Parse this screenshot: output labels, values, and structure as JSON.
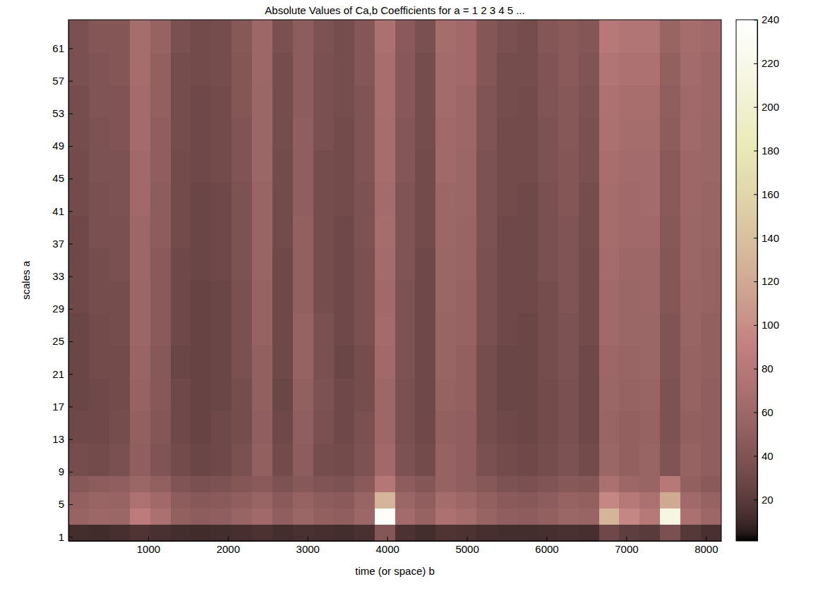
{
  "chart_data": {
    "type": "heatmap",
    "title": "Absolute Values of Ca,b Coefficients for a =  1 2 3 4 5 ...",
    "xlabel": "time (or space) b",
    "ylabel": "scales a",
    "xlim": [
      0,
      8192
    ],
    "xticks": [
      1000,
      2000,
      3000,
      4000,
      5000,
      6000,
      7000,
      8000
    ],
    "ylim": [
      0.5,
      64.5
    ],
    "yticks": [
      1,
      5,
      9,
      13,
      17,
      21,
      25,
      29,
      33,
      37,
      41,
      45,
      49,
      53,
      57,
      61
    ],
    "x_bins": [
      0,
      256,
      512,
      768,
      1024,
      1280,
      1536,
      1792,
      2048,
      2304,
      2560,
      2816,
      3072,
      3328,
      3584,
      3840,
      4096,
      4352,
      4608,
      4864,
      5120,
      5376,
      5632,
      5888,
      6144,
      6400,
      6656,
      6912,
      7168,
      7424,
      7680,
      7936,
      8192
    ],
    "y_bins": [
      0.5,
      2.5,
      4.5,
      6.5,
      8.5,
      12.5,
      16.5,
      20.5,
      24.5,
      28.5,
      32.5,
      36.5,
      40.5,
      44.5,
      48.5,
      52.5,
      56.5,
      60.5,
      64.5
    ],
    "cells": [
      [
        12,
        11,
        13,
        16,
        14,
        12,
        11,
        12,
        13,
        15,
        12,
        14,
        13,
        12,
        14,
        42,
        15,
        12,
        16,
        15,
        13,
        12,
        12,
        13,
        14,
        13,
        30,
        22,
        20,
        36,
        18,
        14
      ],
      [
        55,
        60,
        58,
        85,
        70,
        52,
        48,
        50,
        56,
        62,
        50,
        58,
        52,
        50,
        60,
        235,
        64,
        54,
        72,
        66,
        55,
        50,
        48,
        52,
        58,
        56,
        130,
        95,
        80,
        215,
        70,
        60
      ],
      [
        52,
        56,
        55,
        72,
        62,
        48,
        44,
        46,
        50,
        56,
        46,
        54,
        48,
        46,
        56,
        130,
        58,
        50,
        66,
        60,
        52,
        46,
        44,
        48,
        54,
        52,
        95,
        80,
        70,
        120,
        62,
        54
      ],
      [
        44,
        48,
        50,
        58,
        52,
        40,
        36,
        38,
        42,
        46,
        38,
        44,
        40,
        38,
        46,
        78,
        48,
        42,
        54,
        50,
        44,
        38,
        36,
        40,
        44,
        42,
        70,
        60,
        56,
        80,
        52,
        46
      ],
      [
        34,
        32,
        36,
        50,
        40,
        32,
        28,
        30,
        36,
        52,
        32,
        48,
        34,
        32,
        38,
        62,
        38,
        32,
        54,
        50,
        36,
        32,
        30,
        34,
        38,
        32,
        58,
        52,
        56,
        40,
        54,
        50
      ],
      [
        30,
        30,
        34,
        52,
        42,
        30,
        26,
        30,
        34,
        50,
        30,
        50,
        36,
        30,
        36,
        60,
        36,
        30,
        52,
        50,
        34,
        30,
        28,
        32,
        36,
        30,
        56,
        52,
        54,
        38,
        52,
        50
      ],
      [
        28,
        30,
        32,
        54,
        44,
        30,
        26,
        28,
        34,
        52,
        28,
        52,
        38,
        30,
        34,
        60,
        36,
        30,
        54,
        52,
        34,
        28,
        28,
        32,
        36,
        30,
        58,
        54,
        56,
        38,
        54,
        50
      ],
      [
        28,
        32,
        32,
        56,
        44,
        28,
        26,
        28,
        36,
        52,
        30,
        54,
        36,
        28,
        34,
        62,
        38,
        30,
        56,
        52,
        34,
        28,
        28,
        34,
        38,
        30,
        60,
        56,
        58,
        40,
        54,
        52
      ],
      [
        28,
        32,
        34,
        58,
        46,
        30,
        26,
        28,
        36,
        54,
        30,
        54,
        36,
        30,
        36,
        64,
        38,
        30,
        56,
        54,
        36,
        30,
        28,
        34,
        38,
        32,
        62,
        58,
        58,
        40,
        56,
        52
      ],
      [
        30,
        34,
        34,
        58,
        46,
        30,
        26,
        28,
        36,
        54,
        30,
        52,
        34,
        30,
        36,
        62,
        38,
        30,
        58,
        54,
        36,
        30,
        30,
        34,
        40,
        32,
        62,
        58,
        60,
        42,
        56,
        54
      ],
      [
        30,
        34,
        36,
        60,
        46,
        30,
        28,
        30,
        38,
        56,
        30,
        52,
        34,
        30,
        36,
        64,
        40,
        30,
        58,
        56,
        36,
        30,
        30,
        36,
        40,
        32,
        64,
        60,
        60,
        42,
        58,
        54
      ],
      [
        30,
        36,
        36,
        60,
        48,
        32,
        28,
        30,
        38,
        56,
        32,
        52,
        34,
        30,
        38,
        66,
        40,
        32,
        60,
        56,
        38,
        30,
        30,
        36,
        40,
        34,
        66,
        62,
        62,
        44,
        58,
        56
      ],
      [
        32,
        36,
        38,
        62,
        48,
        32,
        28,
        30,
        38,
        56,
        32,
        50,
        34,
        32,
        38,
        64,
        40,
        32,
        60,
        58,
        38,
        32,
        30,
        36,
        42,
        34,
        66,
        62,
        64,
        46,
        60,
        56
      ],
      [
        32,
        38,
        38,
        62,
        50,
        32,
        30,
        32,
        40,
        58,
        32,
        50,
        34,
        32,
        40,
        66,
        42,
        32,
        62,
        58,
        38,
        32,
        32,
        38,
        42,
        36,
        68,
        64,
        64,
        46,
        60,
        58
      ],
      [
        34,
        38,
        40,
        64,
        50,
        34,
        30,
        32,
        40,
        58,
        34,
        50,
        36,
        32,
        40,
        66,
        42,
        34,
        62,
        60,
        40,
        32,
        32,
        38,
        44,
        36,
        70,
        66,
        66,
        48,
        62,
        58
      ],
      [
        34,
        40,
        40,
        64,
        52,
        34,
        30,
        32,
        42,
        58,
        34,
        48,
        36,
        34,
        40,
        68,
        44,
        34,
        64,
        60,
        40,
        34,
        32,
        40,
        44,
        38,
        72,
        68,
        68,
        50,
        62,
        60
      ],
      [
        36,
        40,
        42,
        66,
        52,
        34,
        32,
        34,
        42,
        60,
        34,
        48,
        36,
        34,
        42,
        68,
        44,
        34,
        64,
        62,
        42,
        34,
        34,
        40,
        46,
        40,
        76,
        72,
        72,
        52,
        64,
        60
      ],
      [
        36,
        42,
        42,
        66,
        54,
        36,
        32,
        34,
        44,
        60,
        36,
        48,
        38,
        34,
        42,
        70,
        46,
        36,
        66,
        62,
        42,
        36,
        34,
        42,
        46,
        42,
        80,
        76,
        76,
        56,
        66,
        62
      ]
    ],
    "color_lim": [
      1,
      240
    ],
    "color_ticks": [
      20,
      40,
      60,
      80,
      100,
      120,
      140,
      160,
      180,
      200,
      220,
      240
    ]
  }
}
